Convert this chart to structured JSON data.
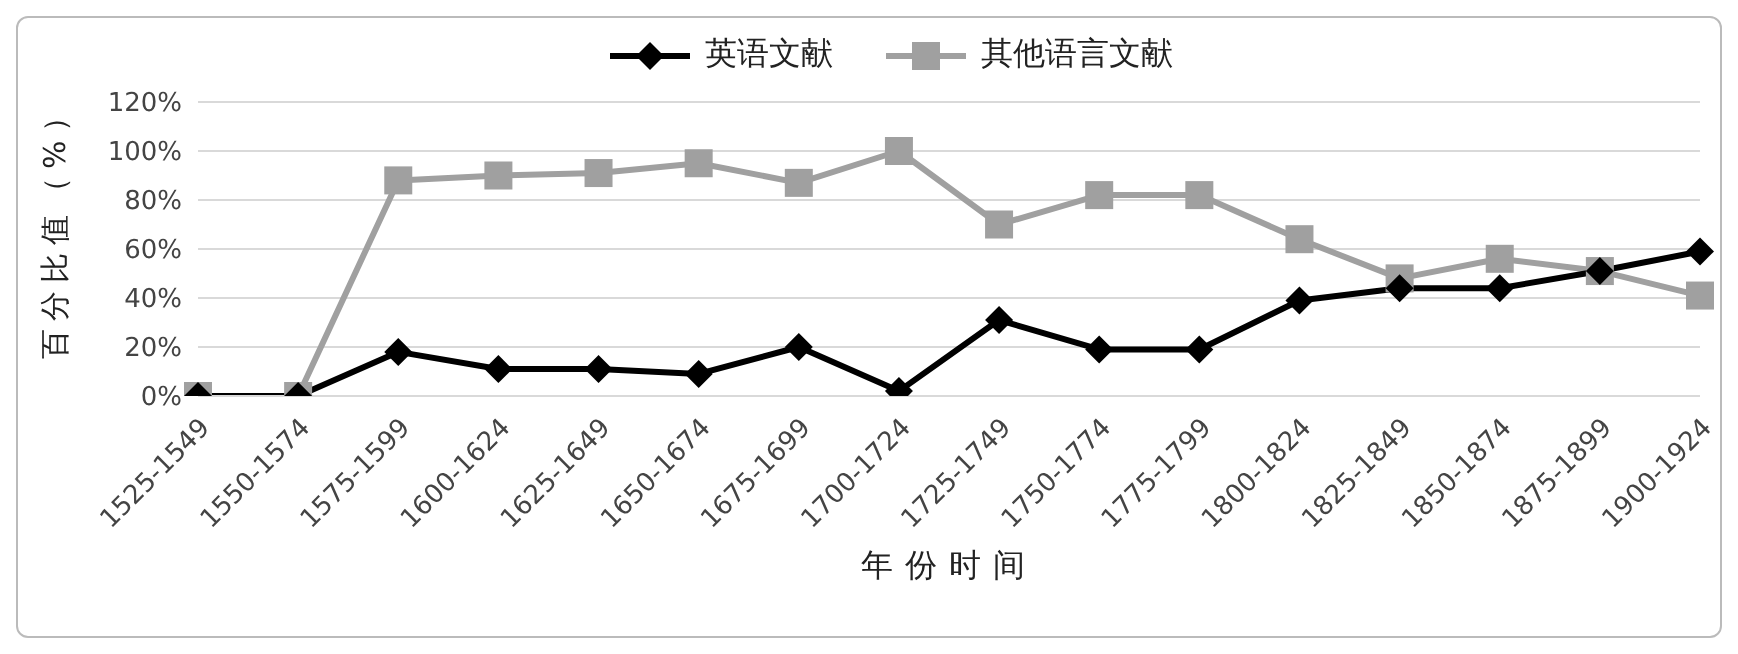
{
  "chart_data": {
    "type": "line",
    "xlabel": "年份时间",
    "ylabel": "百分比值（%）",
    "categories": [
      "1525-1549",
      "1550-1574",
      "1575-1599",
      "1600-1624",
      "1625-1649",
      "1650-1674",
      "1675-1699",
      "1700-1724",
      "1725-1749",
      "1750-1774",
      "1775-1799",
      "1800-1824",
      "1825-1849",
      "1850-1874",
      "1875-1899",
      "1900-1924"
    ],
    "series": [
      {
        "name": "英语文献",
        "color": "#000000",
        "marker": "diamond",
        "values": [
          0,
          0,
          18,
          11,
          11,
          9,
          20,
          2,
          31,
          19,
          19,
          39,
          44,
          44,
          51,
          59
        ]
      },
      {
        "name": "其他语言文献",
        "color": "#a0a0a0",
        "marker": "square",
        "values": [
          0,
          0,
          88,
          90,
          91,
          95,
          87,
          100,
          70,
          82,
          82,
          64,
          48,
          56,
          51,
          41
        ]
      }
    ],
    "ylim": [
      0,
      120
    ],
    "yticks": [
      {
        "value": 0,
        "label": "0%"
      },
      {
        "value": 20,
        "label": "20%"
      },
      {
        "value": 40,
        "label": "40%"
      },
      {
        "value": 60,
        "label": "60%"
      },
      {
        "value": 80,
        "label": "80%"
      },
      {
        "value": 100,
        "label": "100%"
      },
      {
        "value": 120,
        "label": "120%"
      }
    ],
    "grid": "y",
    "legend": "top"
  }
}
